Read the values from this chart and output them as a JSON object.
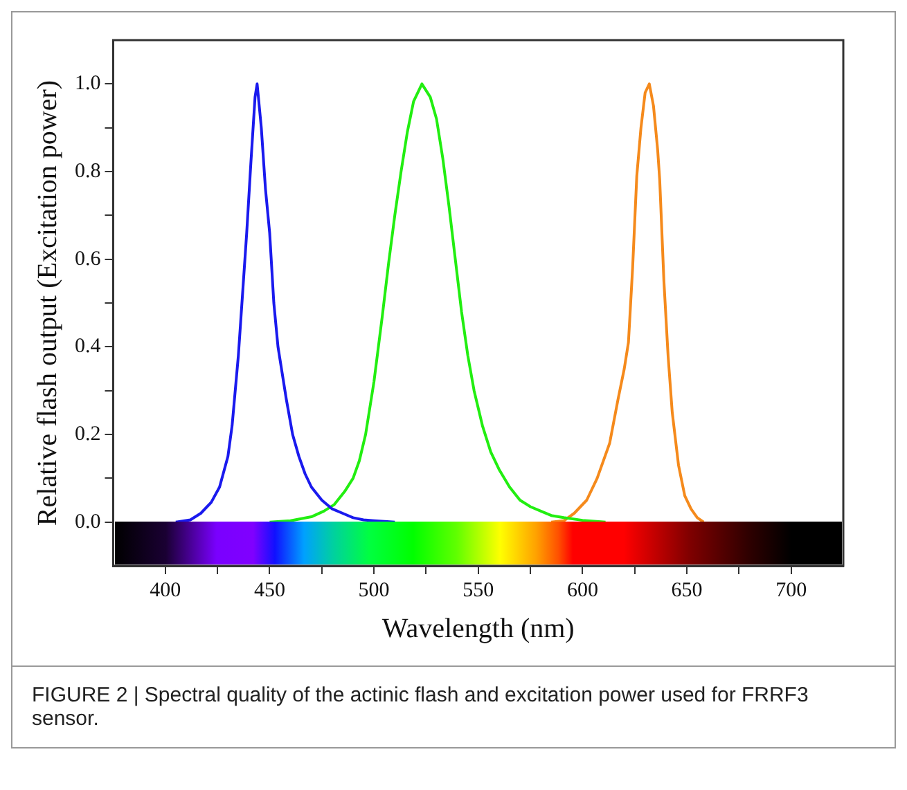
{
  "chart_data": {
    "type": "line",
    "xlabel": "Wavelength (nm)",
    "ylabel": "Relative flash output (Excitation power)",
    "annotations": [
      "FIGURE 2 | Spectral quality of the actinic flash and excitation power used for FRRF3 sensor."
    ],
    "xlim": [
      375,
      725
    ],
    "ylim": [
      -0.1,
      1.1
    ],
    "xticks": [
      400,
      {
        "value": 425,
        "label": null
      },
      450,
      {
        "value": 475,
        "label": null
      },
      500,
      {
        "value": 525,
        "label": null
      },
      550,
      {
        "value": 575,
        "label": null
      },
      600,
      {
        "value": 625,
        "label": null
      },
      650,
      {
        "value": 675,
        "label": null
      },
      700
    ],
    "yticks": [
      {
        "value": 0,
        "label": "0.0"
      },
      {
        "value": 0.1,
        "label": null
      },
      {
        "value": 0.2,
        "label": "0.2"
      },
      {
        "value": 0.3,
        "label": null
      },
      {
        "value": 0.4,
        "label": "0.4"
      },
      {
        "value": 0.5,
        "label": null
      },
      {
        "value": 0.6,
        "label": "0.6"
      },
      {
        "value": 0.7,
        "label": null
      },
      {
        "value": 0.8,
        "label": "0.8"
      },
      {
        "value": 0.9,
        "label": null
      },
      {
        "value": 1.0,
        "label": "1.0"
      }
    ],
    "grid": false,
    "legend": false,
    "marker": "none",
    "line_style": "solid",
    "series": [
      {
        "color": "#1a1aee",
        "x": [
          405,
          412,
          417,
          422,
          426,
          430,
          432,
          435,
          437,
          439,
          441,
          443,
          444,
          446,
          448,
          450,
          452,
          454,
          456,
          458,
          461,
          464,
          467,
          470,
          475,
          480,
          485,
          490,
          495,
          500,
          510
        ],
        "values": [
          0,
          0.005,
          0.02,
          0.045,
          0.08,
          0.15,
          0.22,
          0.38,
          0.52,
          0.66,
          0.82,
          0.97,
          1.0,
          0.9,
          0.76,
          0.66,
          0.5,
          0.4,
          0.34,
          0.28,
          0.2,
          0.15,
          0.11,
          0.08,
          0.05,
          0.03,
          0.02,
          0.01,
          0.005,
          0.003,
          0
        ]
      },
      {
        "color": "#22ee11",
        "x": [
          450,
          460,
          470,
          476,
          481,
          486,
          490,
          493,
          496,
          500,
          504,
          507,
          510,
          513,
          516,
          519,
          523,
          527,
          530,
          533,
          536,
          539,
          542,
          545,
          548,
          552,
          556,
          560,
          565,
          570,
          575,
          580,
          585,
          591,
          600,
          611
        ],
        "values": [
          0,
          0.003,
          0.012,
          0.025,
          0.04,
          0.07,
          0.1,
          0.14,
          0.2,
          0.32,
          0.47,
          0.59,
          0.7,
          0.8,
          0.89,
          0.96,
          1.0,
          0.97,
          0.92,
          0.83,
          0.72,
          0.6,
          0.48,
          0.38,
          0.3,
          0.22,
          0.16,
          0.12,
          0.08,
          0.05,
          0.035,
          0.025,
          0.015,
          0.01,
          0.004,
          0
        ]
      },
      {
        "color": "#f58a1c",
        "x": [
          585,
          591,
          596,
          602,
          607,
          613,
          617,
          620,
          622,
          624,
          626,
          628,
          630,
          632,
          634,
          636,
          637,
          639,
          641,
          643,
          646,
          649,
          652,
          655,
          658
        ],
        "values": [
          0,
          0.003,
          0.02,
          0.05,
          0.1,
          0.18,
          0.28,
          0.35,
          0.41,
          0.58,
          0.79,
          0.9,
          0.98,
          1.0,
          0.95,
          0.85,
          0.78,
          0.55,
          0.38,
          0.25,
          0.13,
          0.06,
          0.03,
          0.01,
          0
        ]
      }
    ]
  }
}
